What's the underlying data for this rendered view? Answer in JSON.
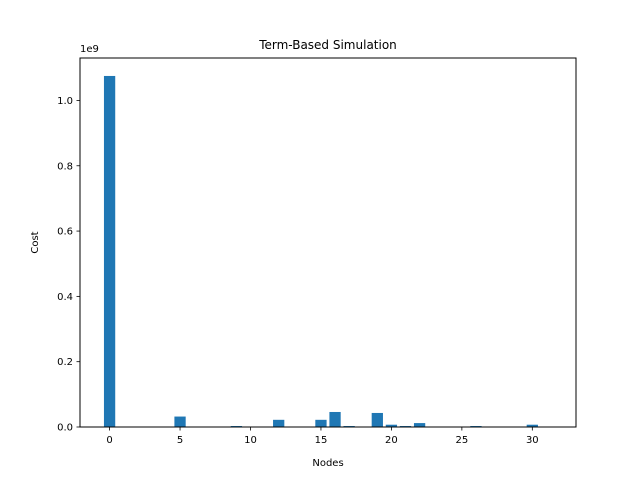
{
  "chart_data": {
    "type": "bar",
    "title": "Term-Based Simulation",
    "xlabel": "Nodes",
    "ylabel": "Cost",
    "y_multiplier_label": "1e9",
    "y_scale_factor": 1000000000,
    "x": [
      0,
      5,
      9,
      12,
      15,
      16,
      17,
      19,
      20,
      21,
      22,
      26,
      30
    ],
    "values": [
      1075000000,
      32000000,
      3000000,
      22000000,
      22000000,
      46000000,
      3000000,
      43000000,
      7000000,
      3000000,
      12000000,
      3000000,
      7000000
    ],
    "xlim": [
      -2.1,
      33.1
    ],
    "ylim": [
      0,
      1130000000
    ],
    "xticks": [
      0,
      5,
      10,
      15,
      20,
      25,
      30
    ],
    "xtick_labels": [
      "0",
      "5",
      "10",
      "15",
      "20",
      "25",
      "30"
    ],
    "yticks": [
      0,
      200000000,
      400000000,
      600000000,
      800000000,
      1000000000
    ],
    "ytick_labels": [
      "0.0",
      "0.2",
      "0.4",
      "0.6",
      "0.8",
      "1.0"
    ],
    "bar_color": "#1f77b4",
    "grid": false,
    "legend": "none"
  }
}
